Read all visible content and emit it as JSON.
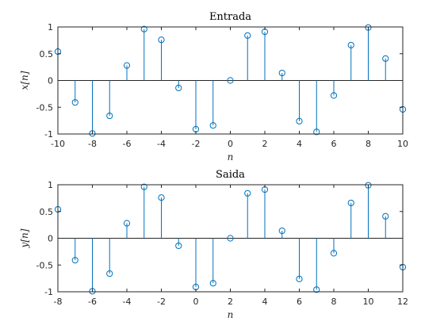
{
  "colors": {
    "stem": "#0072BD",
    "axis": "#262626",
    "background": "#ffffff"
  },
  "chart_data": [
    {
      "type": "stem",
      "title": "Entrada",
      "xlabel": "n",
      "ylabel": "x[n]",
      "xlim": [
        -10,
        10
      ],
      "ylim": [
        -1,
        1
      ],
      "xticks": [
        -10,
        -8,
        -6,
        -4,
        -2,
        0,
        2,
        4,
        6,
        8,
        10
      ],
      "yticks": [
        -1,
        -0.5,
        0,
        0.5,
        1
      ],
      "grid": false,
      "x": [
        -10,
        -9,
        -8,
        -7,
        -6,
        -5,
        -4,
        -3,
        -2,
        -1,
        0,
        1,
        2,
        3,
        4,
        5,
        6,
        7,
        8,
        9,
        10
      ],
      "y": [
        0.54,
        -0.41,
        -0.99,
        -0.66,
        0.28,
        0.96,
        0.76,
        -0.14,
        -0.91,
        -0.84,
        0,
        0.84,
        0.91,
        0.14,
        -0.76,
        -0.96,
        -0.28,
        0.66,
        0.99,
        0.41,
        -0.54
      ]
    },
    {
      "type": "stem",
      "title": "Saida",
      "xlabel": "n",
      "ylabel": "y[n]",
      "xlim": [
        -8,
        12
      ],
      "ylim": [
        -1,
        1
      ],
      "xticks": [
        -8,
        -6,
        -4,
        -2,
        0,
        2,
        4,
        6,
        8,
        10,
        12
      ],
      "yticks": [
        -1,
        -0.5,
        0,
        0.5,
        1
      ],
      "grid": false,
      "x": [
        -8,
        -7,
        -6,
        -5,
        -4,
        -3,
        -2,
        -1,
        0,
        1,
        2,
        3,
        4,
        5,
        6,
        7,
        8,
        9,
        10,
        11,
        12
      ],
      "y": [
        0.54,
        -0.41,
        -0.99,
        -0.66,
        0.28,
        0.96,
        0.76,
        -0.14,
        -0.91,
        -0.84,
        0,
        0.84,
        0.91,
        0.14,
        -0.76,
        -0.96,
        -0.28,
        0.66,
        0.99,
        0.41,
        -0.54
      ]
    }
  ]
}
